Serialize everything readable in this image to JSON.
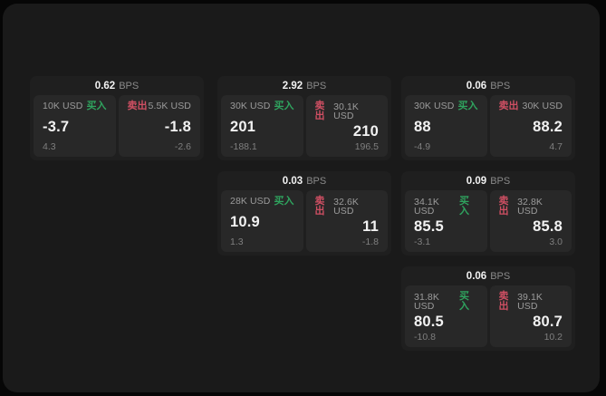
{
  "theme": {
    "page_bg": "#060606",
    "panel_bg": "#1a1a1a",
    "card_bg": "#1f1f1f",
    "tile_bg": "#282828",
    "text_primary": "#f2f2f2",
    "text_muted": "#9b9b9b",
    "text_faint": "#7f7f7f",
    "buy_color": "#2fa35e",
    "sell_color": "#cf4f63"
  },
  "labels": {
    "bps": "BPS",
    "buy": "买入",
    "sell": "卖出"
  },
  "cards": [
    {
      "row": 1,
      "col": 1,
      "bps": "0.62",
      "buy": {
        "amount": "10K USD",
        "price": "-3.7",
        "delta": "4.3"
      },
      "sell": {
        "amount": "5.5K USD",
        "price": "-1.8",
        "delta": "-2.6"
      }
    },
    {
      "row": 1,
      "col": 2,
      "bps": "2.92",
      "buy": {
        "amount": "30K USD",
        "price": "201",
        "delta": "-188.1"
      },
      "sell": {
        "amount": "30.1K USD",
        "price": "210",
        "delta": "196.5"
      }
    },
    {
      "row": 1,
      "col": 3,
      "bps": "0.06",
      "buy": {
        "amount": "30K USD",
        "price": "88",
        "delta": "-4.9"
      },
      "sell": {
        "amount": "30K USD",
        "price": "88.2",
        "delta": "4.7"
      }
    },
    {
      "row": 2,
      "col": 2,
      "bps": "0.03",
      "buy": {
        "amount": "28K USD",
        "price": "10.9",
        "delta": "1.3"
      },
      "sell": {
        "amount": "32.6K USD",
        "price": "11",
        "delta": "-1.8"
      }
    },
    {
      "row": 2,
      "col": 3,
      "bps": "0.09",
      "buy": {
        "amount": "34.1K USD",
        "price": "85.5",
        "delta": "-3.1"
      },
      "sell": {
        "amount": "32.8K USD",
        "price": "85.8",
        "delta": "3.0"
      }
    },
    {
      "row": 3,
      "col": 3,
      "bps": "0.06",
      "buy": {
        "amount": "31.8K USD",
        "price": "80.5",
        "delta": "-10.8"
      },
      "sell": {
        "amount": "39.1K USD",
        "price": "80.7",
        "delta": "10.2"
      }
    }
  ]
}
